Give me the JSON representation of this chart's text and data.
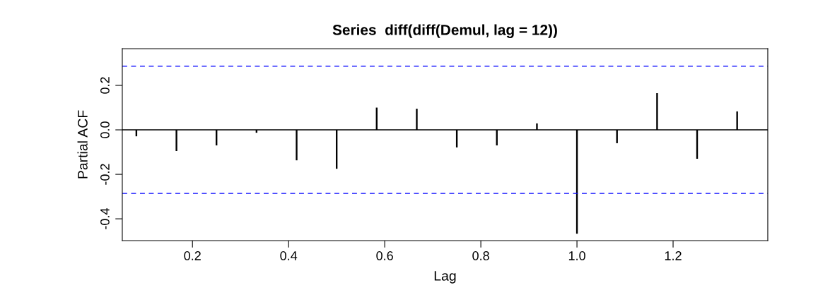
{
  "chart_data": {
    "type": "bar",
    "title": "Series  diff(diff(Demul, lag = 12))",
    "xlabel": "Lag",
    "ylabel": "Partial ACF",
    "x": [
      0.0833,
      0.1667,
      0.25,
      0.3333,
      0.4167,
      0.5,
      0.5833,
      0.6667,
      0.75,
      0.8333,
      0.9167,
      1.0,
      1.0833,
      1.1667,
      1.25,
      1.3333
    ],
    "values": [
      -0.029,
      -0.095,
      -0.07,
      -0.013,
      -0.137,
      -0.175,
      0.1,
      0.095,
      -0.079,
      -0.07,
      0.029,
      -0.467,
      -0.06,
      0.165,
      -0.13,
      0.083
    ],
    "color": "#000000",
    "xlim": [
      0.054,
      1.397
    ],
    "xticks": [
      0.2,
      0.4,
      0.6,
      0.8,
      {
        "value": 1.0,
        "label": "1.0"
      },
      1.2
    ],
    "ylim": [
      -0.498,
      0.365
    ],
    "yticks": [
      -0.4,
      -0.2,
      {
        "value": 0.0,
        "label": "0.0"
      },
      0.2
    ],
    "ref_lines": [
      {
        "axis": "y",
        "value": 0,
        "color": "#000000",
        "line_style": "solid"
      },
      {
        "axis": "y",
        "value": 0.286,
        "color": "#0000ff",
        "line_style": "dashed"
      },
      {
        "axis": "y",
        "value": -0.286,
        "color": "#0000ff",
        "line_style": "dashed"
      }
    ],
    "grid": false,
    "legend": false
  }
}
